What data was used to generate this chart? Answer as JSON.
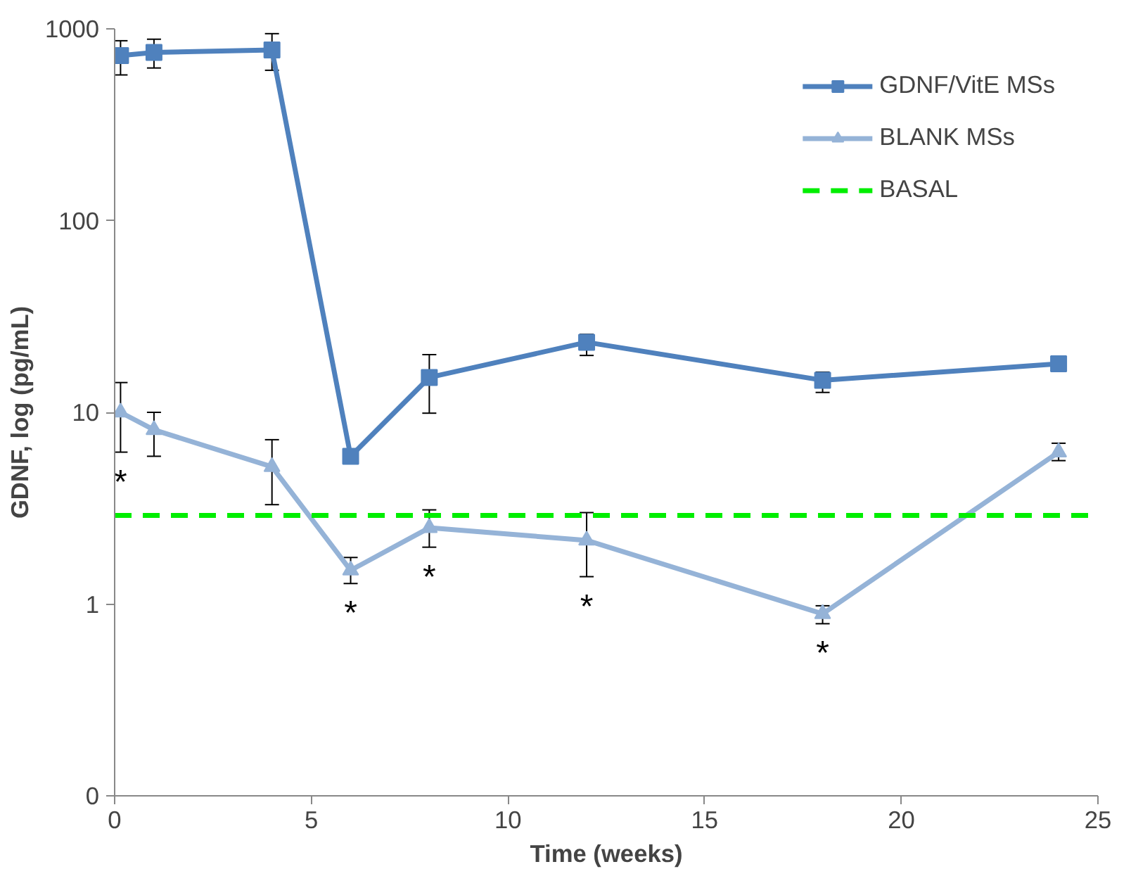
{
  "chart_data": {
    "type": "line",
    "xlabel": "Time (weeks)",
    "ylabel": "GDNF, log (pg/mL)",
    "log": "y",
    "xlim": [
      0,
      25
    ],
    "xticks": [
      0,
      5,
      10,
      15,
      20,
      25
    ],
    "ylim": [
      0.1,
      1000
    ],
    "yticks": [
      {
        "value": 0.1,
        "label": "0"
      },
      1,
      10,
      100,
      1000
    ],
    "grid": false,
    "legend": "top right",
    "line_style": "solid",
    "x": [
      0.15,
      1,
      4,
      6,
      8,
      12,
      18,
      24
    ],
    "series": [
      {
        "name": "GDNF/VitE MSs",
        "color": "#4f81bd",
        "marker": "square",
        "values": [
          725,
          753,
          776,
          5.9,
          15.2,
          23.2,
          14.7,
          17.9
        ],
        "errors": [
          [
            575,
            867
          ],
          [
            625,
            883
          ],
          [
            608,
            944
          ],
          null,
          [
            9.9,
            20
          ],
          [
            19.8,
            25.5
          ],
          [
            12.7,
            16.2
          ],
          null
        ]
      },
      {
        "name": "BLANK MSs",
        "color": "#95b3d7",
        "marker": "triangle",
        "values": [
          10,
          8.1,
          5.2,
          1.5,
          2.5,
          2.15,
          0.89,
          6.2
        ],
        "errors": [
          [
            6.2,
            14.3
          ],
          [
            5.9,
            10
          ],
          [
            3.3,
            7.2
          ],
          [
            1.28,
            1.75
          ],
          [
            1.98,
            3.1
          ],
          [
            1.39,
            3.0
          ],
          [
            0.79,
            0.98
          ],
          [
            5.6,
            6.9
          ]
        ]
      }
    ],
    "ref_lines": [
      {
        "axis": "y",
        "value": 2.9,
        "label": "BASAL",
        "color": "#00ee00",
        "line_style": "dashed"
      }
    ],
    "annotations": [
      {
        "text": "*",
        "x": 0.15,
        "y": 10
      },
      {
        "text": "*",
        "x": 6,
        "y": 1.5
      },
      {
        "text": "*",
        "x": 8,
        "y": 2.5
      },
      {
        "text": "*",
        "x": 12,
        "y": 2.15
      },
      {
        "text": "*",
        "x": 18,
        "y": 0.89
      }
    ]
  }
}
